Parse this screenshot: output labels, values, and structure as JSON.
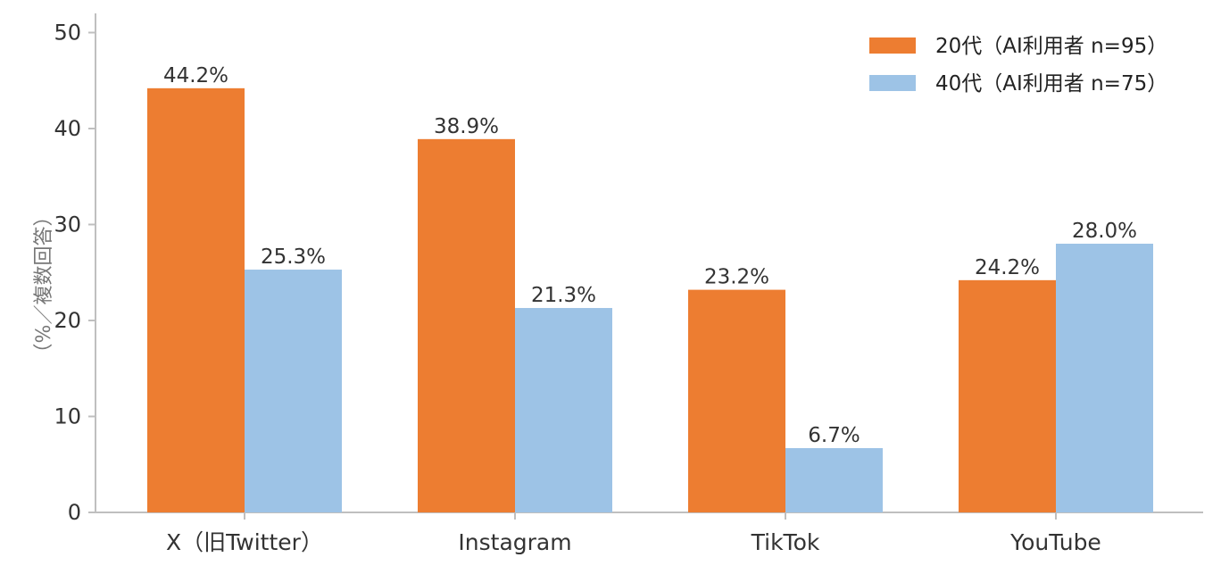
{
  "chart_data": {
    "type": "bar",
    "title": "",
    "xlabel": "",
    "ylabel": "（%／複数回答）",
    "ylim": [
      0,
      52
    ],
    "yticks": [
      0,
      10,
      20,
      30,
      40,
      50
    ],
    "grid": false,
    "legend_position": "top-right",
    "categories": [
      "X（旧Twitter）",
      "Instagram",
      "TikTok",
      "YouTube"
    ],
    "series": [
      {
        "name": "20代（AI利用者 n=95）",
        "color": "#ED7D31",
        "values": [
          44.2,
          38.9,
          23.2,
          24.2
        ],
        "labels": [
          "44.2%",
          "38.9%",
          "23.2%",
          "24.2%"
        ]
      },
      {
        "name": "40代（AI利用者 n=75）",
        "color": "#9DC3E6",
        "values": [
          25.3,
          21.3,
          6.7,
          28.0
        ],
        "labels": [
          "25.3%",
          "21.3%",
          "6.7%",
          "28.0%"
        ]
      }
    ],
    "axis_color": "#BFBFBF"
  }
}
